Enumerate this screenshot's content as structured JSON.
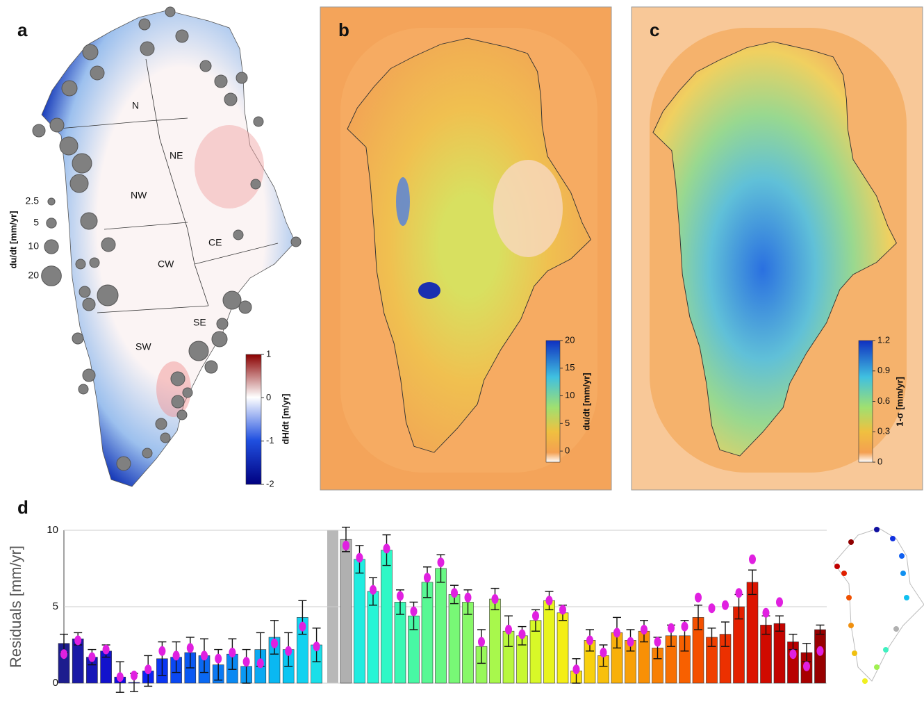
{
  "panel_a": {
    "label": "a",
    "regions": [
      "N",
      "NE",
      "NW",
      "CE",
      "CW",
      "SE",
      "SW"
    ],
    "legend_title": "du/dt [mm/yr]",
    "legend_sizes": [
      2.5,
      5,
      10,
      20
    ],
    "colorbar_title": "dH/dt [m/yr]",
    "colorbar_lim": [
      -2,
      1
    ],
    "colorbar_ticks": [
      1,
      0,
      -1,
      -2
    ]
  },
  "panel_b": {
    "label": "b",
    "colorbar_title": "du/dt [mm/yr]",
    "colorbar_lim": [
      -2,
      20
    ],
    "colorbar_ticks": [
      20,
      15,
      10,
      5,
      0
    ]
  },
  "panel_c": {
    "label": "c",
    "colorbar_title": "1-σ [mm/yr]",
    "colorbar_lim": [
      0,
      1.2
    ],
    "colorbar_ticks": [
      1.2,
      0.9,
      0.6,
      0.3,
      0
    ]
  },
  "chart_data": {
    "type": "bar",
    "label": "d",
    "ylabel": "Residuals [mm/yr]",
    "ylim": [
      0,
      10
    ],
    "yticks": [
      0,
      5,
      10
    ],
    "grid": true,
    "categories": [
      null,
      null,
      null,
      null,
      null,
      null,
      null,
      null,
      null,
      null,
      null,
      null,
      null,
      null,
      null,
      null,
      null,
      null,
      null,
      null,
      null,
      null,
      null,
      null,
      null,
      null,
      null,
      null,
      null,
      null,
      null,
      null,
      null,
      null,
      null,
      null,
      null,
      null,
      null,
      null,
      null,
      null,
      null,
      null,
      null,
      null,
      null,
      null,
      null,
      null,
      null,
      null,
      null,
      null,
      null
    ],
    "values": [
      2.6,
      2.9,
      1.7,
      2.1,
      0.4,
      0.05,
      0.8,
      1.6,
      1.7,
      2.0,
      1.8,
      1.2,
      1.9,
      1.1,
      2.2,
      3.0,
      2.2,
      4.3,
      2.5,
      9.4,
      8.1,
      6.0,
      8.7,
      5.3,
      4.4,
      6.6,
      7.5,
      5.8,
      5.3,
      2.4,
      5.5,
      3.4,
      3.1,
      4.1,
      5.4,
      4.6,
      0.8,
      2.8,
      1.8,
      3.3,
      2.8,
      3.4,
      2.3,
      3.1,
      3.1,
      4.3,
      3.0,
      3.2,
      5.0,
      6.6,
      3.8,
      3.9,
      2.7,
      2.0,
      3.5
    ],
    "errors": [
      0.6,
      0.4,
      0.5,
      0.4,
      1.0,
      0.6,
      1.0,
      1.1,
      1.0,
      1.0,
      1.1,
      1.0,
      1.0,
      1.1,
      1.1,
      1.1,
      1.1,
      1.1,
      1.1,
      0.8,
      0.9,
      0.9,
      1.0,
      0.8,
      0.9,
      1.0,
      0.9,
      0.6,
      0.8,
      1.1,
      0.7,
      1.0,
      0.6,
      0.7,
      0.6,
      0.5,
      0.8,
      0.7,
      0.7,
      1.0,
      0.7,
      0.7,
      0.7,
      0.7,
      1.0,
      0.8,
      0.6,
      0.8,
      0.8,
      0.8,
      0.6,
      0.5,
      0.5,
      0.6,
      0.3
    ],
    "model": [
      1.9,
      2.8,
      1.7,
      2.2,
      0.4,
      0.5,
      0.9,
      2.1,
      1.8,
      2.3,
      1.8,
      1.6,
      2.0,
      1.4,
      1.3,
      2.6,
      2.1,
      3.7,
      2.4,
      9.0,
      8.2,
      6.1,
      8.8,
      5.7,
      4.7,
      6.9,
      7.9,
      5.9,
      5.6,
      2.7,
      5.5,
      3.5,
      3.2,
      4.4,
      5.4,
      4.8,
      0.9,
      2.8,
      2.0,
      3.3,
      2.7,
      3.5,
      2.7,
      3.6,
      3.7,
      5.6,
      4.9,
      5.1,
      5.9,
      8.1,
      4.6,
      5.3,
      1.9,
      1.1,
      2.1
    ],
    "model_color": "#e020e0",
    "colors": [
      "#1d1d8e",
      "#1a1aa6",
      "#1717b8",
      "#1212cc",
      "#0d0ddd",
      "#0a14ea",
      "#0a25f0",
      "#0a36f2",
      "#0a48f2",
      "#0a58f2",
      "#0a69f2",
      "#0a79f2",
      "#0a89f2",
      "#0a99f2",
      "#0aa9f2",
      "#0ab8f2",
      "#0ac6f2",
      "#12d2f0",
      "#1adfe8",
      "#b0b0b0",
      "#20ece0",
      "#26f5d6",
      "#2ef8c6",
      "#3af8b4",
      "#48f8a4",
      "#58f894",
      "#68f884",
      "#78f876",
      "#88f868",
      "#98f85a",
      "#a8f84c",
      "#b8f83e",
      "#c8f832",
      "#d8f828",
      "#e8f41e",
      "#f4ee16",
      "#f8e012",
      "#f8d00e",
      "#f8c00c",
      "#f8b00a",
      "#f8a008",
      "#f89006",
      "#f88004",
      "#f87002",
      "#f86000",
      "#f45000",
      "#f04000",
      "#ec3000",
      "#e42000",
      "#dc1400",
      "#d00a00",
      "#c40400",
      "#b80000",
      "#a80000",
      "#980000"
    ]
  }
}
